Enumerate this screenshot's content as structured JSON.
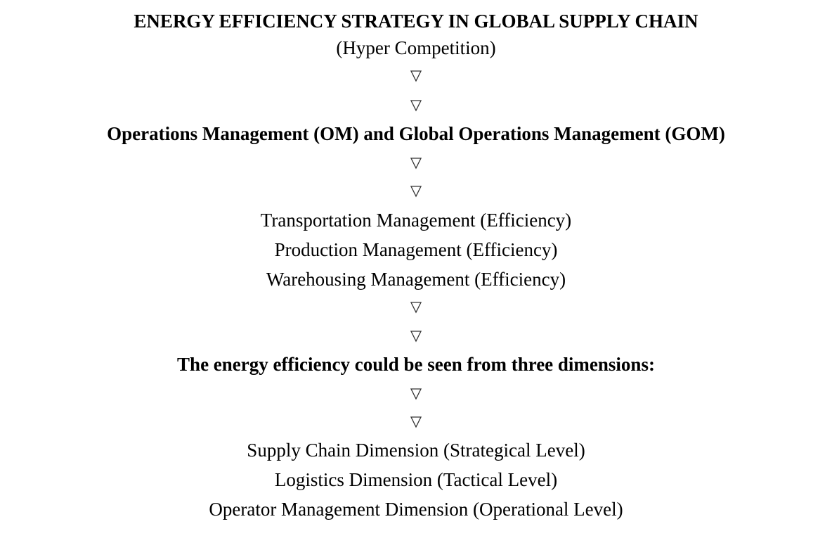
{
  "title": "ENERGY EFFICIENCY STRATEGY IN GLOBAL SUPPLY CHAIN",
  "subtitle": "(Hyper Competition)",
  "level_1": {
    "heading": "Operations Management (OM) and Global Operations Management (GOM)",
    "items": [
      "Transportation Management (Efficiency)",
      "Production Management (Efficiency)",
      "Warehousing Management (Efficiency)"
    ]
  },
  "level_2": {
    "heading": "The energy efficiency could be seen from three dimensions:",
    "items": [
      "Supply Chain Dimension (Strategical Level)",
      "Logistics Dimension (Tactical Level)",
      "Operator Management Dimension (Operational Level)"
    ]
  }
}
